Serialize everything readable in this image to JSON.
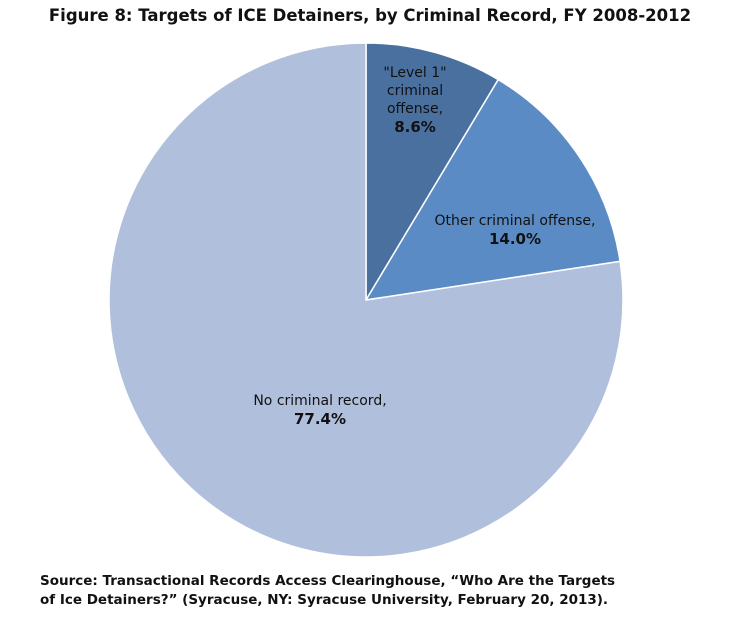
{
  "chart_data": {
    "type": "pie",
    "title": "Figure 8: Targets of ICE Detainers, by Criminal Record, FY 2008-2012",
    "start_angle": "12 o'clock, clockwise",
    "slices": [
      {
        "label": "\"Level 1\" criminal offense,",
        "value": 8.6,
        "value_label": "8.6%",
        "color": "#4a70a0"
      },
      {
        "label": "Other criminal offense,",
        "value": 14.0,
        "value_label": "14.0%",
        "color": "#5b8bc4"
      },
      {
        "label": "No criminal record,",
        "value": 77.4,
        "value_label": "77.4%",
        "color": "#b0c0dc"
      }
    ]
  },
  "source": {
    "line1": "Source: Transactional Records Access Clearinghouse, “Who Are the Targets",
    "line2": "of Ice Detainers?” (Syracuse, NY: Syracuse University, February 20, 2013)."
  }
}
